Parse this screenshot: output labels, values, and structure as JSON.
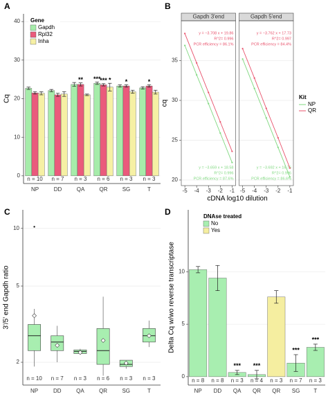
{
  "chart_data": [
    {
      "type": "bar",
      "panel": "A",
      "y_label": "Cq",
      "ylim": [
        -2,
        42
      ],
      "yticks": [
        0,
        10,
        20,
        30,
        40
      ],
      "grid": true,
      "legend_title": "Gene",
      "categories": [
        "NP",
        "DD",
        "QA",
        "QR",
        "SG",
        "T"
      ],
      "n_labels": [
        "n = 10",
        "n = 7",
        "n = 3",
        "n = 6",
        "n = 3",
        "n = 3"
      ],
      "series": [
        {
          "name": "Gapdh",
          "color": "#a6ecaa",
          "values": [
            22.7,
            22.1,
            23.7,
            24.0,
            23.3,
            22.8
          ],
          "errors": [
            0.3,
            0.3,
            0.5,
            0.3,
            0.3,
            0.3
          ],
          "stars": [
            null,
            null,
            null,
            "***",
            null,
            null
          ]
        },
        {
          "name": "Rpl32",
          "color": "#ea5a7c",
          "values": [
            21.5,
            21.0,
            23.7,
            23.6,
            23.3,
            23.3
          ],
          "errors": [
            0.3,
            0.4,
            0.4,
            0.3,
            0.3,
            0.3
          ],
          "stars": [
            null,
            null,
            "**",
            "***",
            "*",
            "*"
          ]
        },
        {
          "name": "Inha",
          "color": "#f6f0a4",
          "values": [
            21.4,
            21.2,
            21.0,
            23.0,
            21.8,
            21.7
          ],
          "errors": [
            0.4,
            0.6,
            0.2,
            1.0,
            0.4,
            0.5
          ],
          "stars": [
            null,
            null,
            null,
            "*",
            null,
            null
          ]
        }
      ]
    },
    {
      "type": "line",
      "panel": "B",
      "x_label": "cDNA log10 dilution",
      "y_label": "cq",
      "xlim": [
        -5.3,
        -0.7
      ],
      "xticks": [
        -5,
        -4,
        -3,
        -2,
        -1
      ],
      "ylim": [
        19.3,
        40
      ],
      "yticks": [
        20,
        25,
        30,
        35
      ],
      "grid": true,
      "legend_title": "Kit",
      "series_names": [
        "NP",
        "QR"
      ],
      "colors": [
        "#7fd87f",
        "#e8506a"
      ],
      "x": [
        -5,
        -4,
        -3,
        -2,
        -1
      ],
      "facets": [
        {
          "title": "Gapdh 3'end",
          "values": [
            [
              36.9,
              33.2,
              29.6,
              25.9,
              22.2
            ],
            [
              38.4,
              34.7,
              31.0,
              27.3,
              23.6
            ]
          ],
          "annotations": [
            [
              "y = −3.659 x + 18.58",
              "R^2= 0.996",
              "PCR efficiency = 87.6%"
            ],
            [
              "y = −3.708 x + 19.86",
              "R^2= 0.996",
              "PCR efficiency = 86.1%"
            ]
          ]
        },
        {
          "title": "Gapdh 5'end",
          "values": [
            [
              35.2,
              31.5,
              27.8,
              24.1,
              20.4
            ],
            [
              36.5,
              32.8,
              29.0,
              25.3,
              21.5
            ]
          ],
          "annotations": [
            [
              "y = −3.692 x + 16.76",
              "R^2= 0.996",
              "PCR efficiency = 86.6%"
            ],
            [
              "y = −3.762 x + 17.73",
              "R^2= 0.997",
              "PCR efficiency = 84.4%"
            ]
          ]
        }
      ]
    },
    {
      "type": "box",
      "panel": "C",
      "y_label": "3'/5' end Gapdh ratio",
      "log_scale": true,
      "ylim": [
        1.52,
        12.5
      ],
      "yticks": [
        2,
        5,
        10
      ],
      "grid": true,
      "color": "#a8eeb0",
      "categories": [
        "NP",
        "DD",
        "QA",
        "QR",
        "SG",
        "T"
      ],
      "n_labels": [
        "n = 10",
        "n = 7",
        "n = 3",
        "n = 6",
        "n = 3",
        "n = 3"
      ],
      "boxes": [
        {
          "whisker_low": 1.9,
          "q1": 2.3,
          "median": 2.75,
          "q3": 3.15,
          "whisker_high": 3.8,
          "mean": 3.5,
          "outliers": [
            10.2
          ]
        },
        {
          "whisker_low": 2.0,
          "q1": 2.3,
          "median": 2.55,
          "q3": 2.75,
          "whisker_high": 3.1,
          "mean": 2.45,
          "outliers": []
        },
        {
          "whisker_low": 2.2,
          "q1": 2.22,
          "median": 2.28,
          "q3": 2.32,
          "whisker_high": 2.35,
          "mean": 2.25,
          "outliers": []
        },
        {
          "whisker_low": 1.7,
          "q1": 1.95,
          "median": 2.3,
          "q3": 3.0,
          "whisker_high": 4.4,
          "mean": 2.6,
          "outliers": []
        },
        {
          "whisker_low": 1.85,
          "q1": 1.9,
          "median": 1.95,
          "q3": 2.05,
          "whisker_high": 2.05,
          "mean": 1.98,
          "outliers": []
        },
        {
          "whisker_low": 2.4,
          "q1": 2.55,
          "median": 2.75,
          "q3": 3.0,
          "whisker_high": 3.3,
          "mean": 2.75,
          "outliers": []
        }
      ]
    },
    {
      "type": "bar",
      "panel": "D",
      "y_label": "Delta Cq w/wo reverse transcriptase",
      "ylim": [
        -0.8,
        15.9
      ],
      "yticks": [
        0,
        5,
        10
      ],
      "grid": true,
      "legend_title": "DNAse treated",
      "legend_names": [
        "No",
        "Yes"
      ],
      "legend_colors": [
        "#a8eeb0",
        "#f5eea0"
      ],
      "categories": [
        "NP",
        "DD",
        "QA",
        "QR",
        "QR",
        "SG",
        "T"
      ],
      "groups": [
        "No",
        "No",
        "No",
        "No",
        "Yes",
        "No",
        "No"
      ],
      "values": [
        10.2,
        9.4,
        0.4,
        0.2,
        7.6,
        1.3,
        2.8
      ],
      "errors": [
        0.3,
        1.2,
        0.2,
        0.4,
        0.6,
        0.8,
        0.3
      ],
      "stars": [
        null,
        null,
        "***",
        "***",
        null,
        "***",
        "***"
      ],
      "n_labels": [
        "n = 8",
        "n = 8",
        "n = 3",
        "n = 4",
        "n = 3",
        "n = 7",
        "n = 3"
      ]
    }
  ]
}
